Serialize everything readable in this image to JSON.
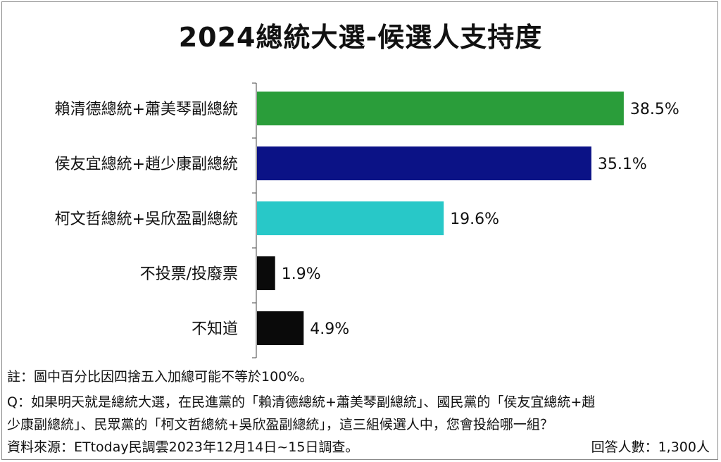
{
  "colors": {
    "ddp": "#2a9d3a",
    "kmt": "#0b1286",
    "tpp": "#28c8c8",
    "other": "#0a0a0a",
    "axis": "#444444"
  },
  "chart_data": {
    "type": "bar",
    "orientation": "horizontal",
    "title": "2024總統大選-候選人支持度",
    "categories": [
      "賴清德總統+蕭美琴副總統",
      "侯友宜總統+趙少康副總統",
      "柯文哲總統+吳欣盈副總統",
      "不投票/投廢票",
      "不知道"
    ],
    "values": [
      38.5,
      35.1,
      19.6,
      1.9,
      4.9
    ],
    "value_labels": [
      "38.5%",
      "35.1%",
      "19.6%",
      "1.9%",
      "4.9%"
    ],
    "bar_colors": [
      "#2a9d3a",
      "#0b1286",
      "#28c8c8",
      "#0a0a0a",
      "#0a0a0a"
    ],
    "xlim": [
      0,
      40
    ],
    "grid": false,
    "legend": "none"
  },
  "notes": {
    "note1": "註：圖中百分比因四捨五入加總可能不等於100%。",
    "question_line1": "Q：如果明天就是總統大選，在民進黨的「賴清德總統+蕭美琴副總統」、國民黨的「侯友宜總統+趙",
    "question_line2": "少康副總統」、民眾黨的「柯文哲總統+吳欣盈副總統」，這三組候選人中，您會投給哪一組？",
    "source": "資料來源：ETtoday民調雲2023年12月14日~15日調查。",
    "respondents": "回答人數：1,300人"
  }
}
